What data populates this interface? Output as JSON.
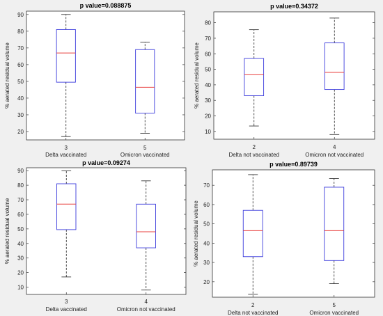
{
  "chart_data": [
    {
      "type": "box",
      "title": "p value=0.088875",
      "ylabel": "% aerated residual volume",
      "xlabel": "",
      "ylim": [
        15,
        92
      ],
      "yticks": [
        20,
        30,
        40,
        50,
        60,
        70,
        80,
        90
      ],
      "categories": [
        "3",
        "5"
      ],
      "category_labels": [
        "Delta vaccinated",
        "Omicron vaccinated"
      ],
      "boxes": [
        {
          "min": 17,
          "q1": 49.5,
          "median": 67,
          "q3": 81,
          "max": 90
        },
        {
          "min": 19,
          "q1": 31,
          "median": 46.5,
          "q3": 69,
          "max": 73.5
        }
      ],
      "box_color": "#3b3bdc",
      "median_color": "#e8403f",
      "whisker_color": "#222222"
    },
    {
      "type": "box",
      "title": "p value=0.34372",
      "ylabel": "% aerated residual volume",
      "xlabel": "",
      "ylim": [
        5,
        87
      ],
      "yticks": [
        10,
        20,
        30,
        40,
        50,
        60,
        70,
        80
      ],
      "categories": [
        "2",
        "4"
      ],
      "category_labels": [
        "Delta not vaccinated",
        "Omicron not vaccinated"
      ],
      "boxes": [
        {
          "min": 13.5,
          "q1": 33,
          "median": 46.5,
          "q3": 57,
          "max": 75.5
        },
        {
          "min": 8,
          "q1": 37,
          "median": 48,
          "q3": 67,
          "max": 83
        }
      ],
      "box_color": "#3b3bdc",
      "median_color": "#e8403f",
      "whisker_color": "#222222"
    },
    {
      "type": "box",
      "title": "p value=0.09274",
      "ylabel": "% aerated residual volume",
      "xlabel": "",
      "ylim": [
        5,
        92
      ],
      "yticks": [
        10,
        20,
        30,
        40,
        50,
        60,
        70,
        80,
        90
      ],
      "categories": [
        "3",
        "4"
      ],
      "category_labels": [
        "Delta vaccinated",
        "Omicron not vaccinated"
      ],
      "boxes": [
        {
          "min": 17,
          "q1": 49.5,
          "median": 67,
          "q3": 81,
          "max": 90
        },
        {
          "min": 8,
          "q1": 37,
          "median": 48,
          "q3": 67,
          "max": 83
        }
      ],
      "box_color": "#3b3bdc",
      "median_color": "#e8403f",
      "whisker_color": "#222222"
    },
    {
      "type": "box",
      "title": "p value=0.89739",
      "ylabel": "% aerated residual volume",
      "xlabel": "",
      "ylim": [
        12,
        78
      ],
      "yticks": [
        20,
        30,
        40,
        50,
        60,
        70
      ],
      "categories": [
        "2",
        "5"
      ],
      "category_labels": [
        "Delta not vaccinated",
        "Omicron vaccinated"
      ],
      "boxes": [
        {
          "min": 13.5,
          "q1": 33,
          "median": 46.5,
          "q3": 57,
          "max": 75.5
        },
        {
          "min": 19,
          "q1": 31,
          "median": 46.5,
          "q3": 69,
          "max": 73.5
        }
      ],
      "box_color": "#3b3bdc",
      "median_color": "#e8403f",
      "whisker_color": "#222222"
    }
  ]
}
